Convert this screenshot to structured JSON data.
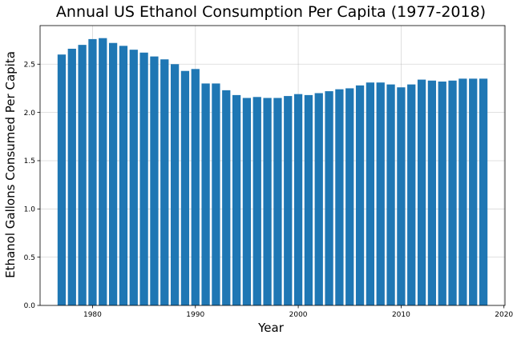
{
  "chart_data": {
    "type": "bar",
    "title": "Annual US Ethanol Consumption Per Capita (1977-2018)",
    "xlabel": "Year",
    "ylabel": "Ethanol Gallons Consumed Per Capita",
    "x": [
      1977,
      1978,
      1979,
      1980,
      1981,
      1982,
      1983,
      1984,
      1985,
      1986,
      1987,
      1988,
      1989,
      1990,
      1991,
      1992,
      1993,
      1994,
      1995,
      1996,
      1997,
      1998,
      1999,
      2000,
      2001,
      2002,
      2003,
      2004,
      2005,
      2006,
      2007,
      2008,
      2009,
      2010,
      2011,
      2012,
      2013,
      2014,
      2015,
      2016,
      2017,
      2018
    ],
    "values": [
      2.6,
      2.66,
      2.7,
      2.76,
      2.77,
      2.72,
      2.69,
      2.65,
      2.62,
      2.58,
      2.55,
      2.5,
      2.43,
      2.45,
      2.3,
      2.3,
      2.23,
      2.18,
      2.15,
      2.16,
      2.15,
      2.15,
      2.17,
      2.19,
      2.18,
      2.2,
      2.22,
      2.24,
      2.25,
      2.28,
      2.31,
      2.31,
      2.29,
      2.26,
      2.29,
      2.34,
      2.33,
      2.32,
      2.33,
      2.35,
      2.35,
      2.35
    ],
    "xlim": [
      1974.9,
      2020.1
    ],
    "ylim": [
      0,
      2.9
    ],
    "xticks": [
      1980,
      1990,
      2000,
      2010,
      2020
    ],
    "yticks": [
      0.0,
      0.5,
      1.0,
      1.5,
      2.0,
      2.5
    ],
    "xtick_labels": [
      "1980",
      "1990",
      "2000",
      "2010",
      "2020"
    ],
    "ytick_labels": [
      "0.0",
      "0.5",
      "1.0",
      "1.5",
      "2.0",
      "2.5"
    ],
    "grid": true,
    "bar_color": "#1f77b4",
    "grid_color": "#b0b0b0"
  }
}
